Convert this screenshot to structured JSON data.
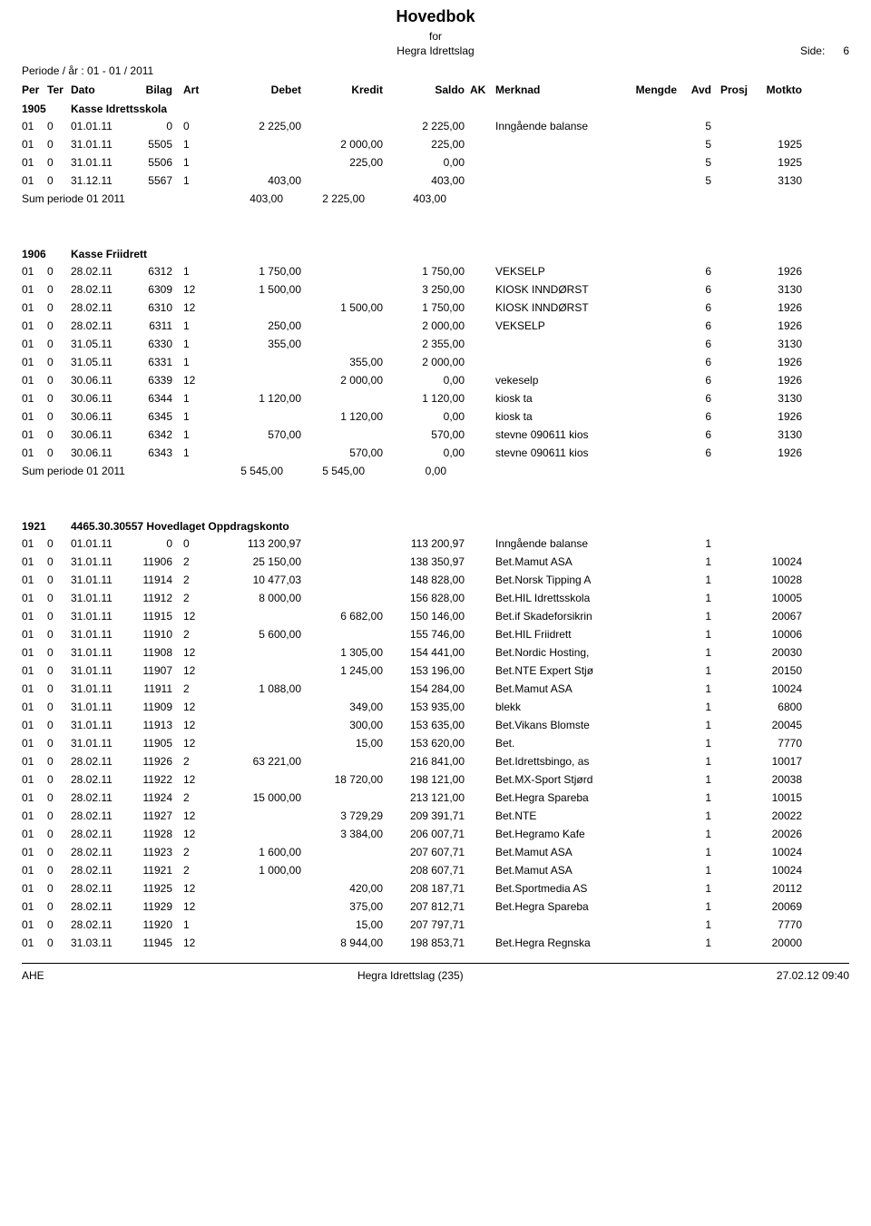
{
  "header": {
    "title": "Hovedbok",
    "sub": "for",
    "entity": "Hegra Idrettslag",
    "side_label": "Side:",
    "side_num": "6"
  },
  "period_line": "Periode / år :  01   -   01  /  2011",
  "columns": {
    "per": "Per",
    "ter": "Ter",
    "dato": "Dato",
    "bilag": "Bilag",
    "art": "Art",
    "debet": "Debet",
    "kredit": "Kredit",
    "saldo": "Saldo",
    "ak": "AK",
    "merknad": "Merknad",
    "mengde": "Mengde",
    "avd": "Avd",
    "prosj": "Prosj",
    "motkto": "Motkto"
  },
  "sections": [
    {
      "acct": "1905",
      "name": "Kasse Idrettsskola",
      "rows": [
        {
          "per": "01",
          "ter": "0",
          "dato": "01.01.11",
          "bilag": "0",
          "art": "0",
          "debet": "2 225,00",
          "kredit": "",
          "saldo": "2 225,00",
          "merknad": "Inngående balanse",
          "avd": "5",
          "motkto": ""
        },
        {
          "per": "01",
          "ter": "0",
          "dato": "31.01.11",
          "bilag": "5505",
          "art": "1",
          "debet": "",
          "kredit": "2 000,00",
          "saldo": "225,00",
          "merknad": "",
          "avd": "5",
          "motkto": "1925"
        },
        {
          "per": "01",
          "ter": "0",
          "dato": "31.01.11",
          "bilag": "5506",
          "art": "1",
          "debet": "",
          "kredit": "225,00",
          "saldo": "0,00",
          "merknad": "",
          "avd": "5",
          "motkto": "1925"
        },
        {
          "per": "01",
          "ter": "0",
          "dato": "31.12.11",
          "bilag": "5567",
          "art": "1",
          "debet": "403,00",
          "kredit": "",
          "saldo": "403,00",
          "merknad": "",
          "avd": "5",
          "motkto": "3130"
        }
      ],
      "sum": {
        "label": "Sum periode 01  2011",
        "debet": "403,00",
        "kredit": "2 225,00",
        "saldo": "403,00"
      }
    },
    {
      "acct": "1906",
      "name": "Kasse Friidrett",
      "rows": [
        {
          "per": "01",
          "ter": "0",
          "dato": "28.02.11",
          "bilag": "6312",
          "art": "1",
          "debet": "1 750,00",
          "kredit": "",
          "saldo": "1 750,00",
          "merknad": "VEKSELP",
          "avd": "6",
          "motkto": "1926"
        },
        {
          "per": "01",
          "ter": "0",
          "dato": "28.02.11",
          "bilag": "6309",
          "art": "12",
          "debet": "1 500,00",
          "kredit": "",
          "saldo": "3 250,00",
          "merknad": "KIOSK INNDØRST",
          "avd": "6",
          "motkto": "3130"
        },
        {
          "per": "01",
          "ter": "0",
          "dato": "28.02.11",
          "bilag": "6310",
          "art": "12",
          "debet": "",
          "kredit": "1 500,00",
          "saldo": "1 750,00",
          "merknad": "KIOSK INNDØRST",
          "avd": "6",
          "motkto": "1926"
        },
        {
          "per": "01",
          "ter": "0",
          "dato": "28.02.11",
          "bilag": "6311",
          "art": "1",
          "debet": "250,00",
          "kredit": "",
          "saldo": "2 000,00",
          "merknad": "VEKSELP",
          "avd": "6",
          "motkto": "1926"
        },
        {
          "per": "01",
          "ter": "0",
          "dato": "31.05.11",
          "bilag": "6330",
          "art": "1",
          "debet": "355,00",
          "kredit": "",
          "saldo": "2 355,00",
          "merknad": "",
          "avd": "6",
          "motkto": "3130"
        },
        {
          "per": "01",
          "ter": "0",
          "dato": "31.05.11",
          "bilag": "6331",
          "art": "1",
          "debet": "",
          "kredit": "355,00",
          "saldo": "2 000,00",
          "merknad": "",
          "avd": "6",
          "motkto": "1926"
        },
        {
          "per": "01",
          "ter": "0",
          "dato": "30.06.11",
          "bilag": "6339",
          "art": "12",
          "debet": "",
          "kredit": "2 000,00",
          "saldo": "0,00",
          "merknad": "vekeselp",
          "avd": "6",
          "motkto": "1926"
        },
        {
          "per": "01",
          "ter": "0",
          "dato": "30.06.11",
          "bilag": "6344",
          "art": "1",
          "debet": "1 120,00",
          "kredit": "",
          "saldo": "1 120,00",
          "merknad": "kiosk ta",
          "avd": "6",
          "motkto": "3130"
        },
        {
          "per": "01",
          "ter": "0",
          "dato": "30.06.11",
          "bilag": "6345",
          "art": "1",
          "debet": "",
          "kredit": "1 120,00",
          "saldo": "0,00",
          "merknad": "kiosk ta",
          "avd": "6",
          "motkto": "1926"
        },
        {
          "per": "01",
          "ter": "0",
          "dato": "30.06.11",
          "bilag": "6342",
          "art": "1",
          "debet": "570,00",
          "kredit": "",
          "saldo": "570,00",
          "merknad": "stevne 090611 kios",
          "avd": "6",
          "motkto": "3130"
        },
        {
          "per": "01",
          "ter": "0",
          "dato": "30.06.11",
          "bilag": "6343",
          "art": "1",
          "debet": "",
          "kredit": "570,00",
          "saldo": "0,00",
          "merknad": "stevne 090611 kios",
          "avd": "6",
          "motkto": "1926"
        }
      ],
      "sum": {
        "label": "Sum periode 01  2011",
        "debet": "5 545,00",
        "kredit": "5 545,00",
        "saldo": "0,00"
      }
    },
    {
      "acct": "1921",
      "name": "4465.30.30557 Hovedlaget Oppdragskonto",
      "rows": [
        {
          "per": "01",
          "ter": "0",
          "dato": "01.01.11",
          "bilag": "0",
          "art": "0",
          "debet": "113 200,97",
          "kredit": "",
          "saldo": "113 200,97",
          "merknad": "Inngående balanse",
          "avd": "1",
          "motkto": ""
        },
        {
          "per": "01",
          "ter": "0",
          "dato": "31.01.11",
          "bilag": "11906",
          "art": "2",
          "debet": "25 150,00",
          "kredit": "",
          "saldo": "138 350,97",
          "merknad": "Bet.Mamut ASA",
          "avd": "1",
          "motkto": "10024"
        },
        {
          "per": "01",
          "ter": "0",
          "dato": "31.01.11",
          "bilag": "11914",
          "art": "2",
          "debet": "10 477,03",
          "kredit": "",
          "saldo": "148 828,00",
          "merknad": "Bet.Norsk Tipping A",
          "avd": "1",
          "motkto": "10028"
        },
        {
          "per": "01",
          "ter": "0",
          "dato": "31.01.11",
          "bilag": "11912",
          "art": "2",
          "debet": "8 000,00",
          "kredit": "",
          "saldo": "156 828,00",
          "merknad": "Bet.HIL Idrettsskola",
          "avd": "1",
          "motkto": "10005"
        },
        {
          "per": "01",
          "ter": "0",
          "dato": "31.01.11",
          "bilag": "11915",
          "art": "12",
          "debet": "",
          "kredit": "6 682,00",
          "saldo": "150 146,00",
          "merknad": "Bet.if Skadeforsikrin",
          "avd": "1",
          "motkto": "20067"
        },
        {
          "per": "01",
          "ter": "0",
          "dato": "31.01.11",
          "bilag": "11910",
          "art": "2",
          "debet": "5 600,00",
          "kredit": "",
          "saldo": "155 746,00",
          "merknad": "Bet.HIL Friidrett",
          "avd": "1",
          "motkto": "10006"
        },
        {
          "per": "01",
          "ter": "0",
          "dato": "31.01.11",
          "bilag": "11908",
          "art": "12",
          "debet": "",
          "kredit": "1 305,00",
          "saldo": "154 441,00",
          "merknad": "Bet.Nordic Hosting,",
          "avd": "1",
          "motkto": "20030"
        },
        {
          "per": "01",
          "ter": "0",
          "dato": "31.01.11",
          "bilag": "11907",
          "art": "12",
          "debet": "",
          "kredit": "1 245,00",
          "saldo": "153 196,00",
          "merknad": "Bet.NTE Expert Stjø",
          "avd": "1",
          "motkto": "20150"
        },
        {
          "per": "01",
          "ter": "0",
          "dato": "31.01.11",
          "bilag": "11911",
          "art": "2",
          "debet": "1 088,00",
          "kredit": "",
          "saldo": "154 284,00",
          "merknad": "Bet.Mamut ASA",
          "avd": "1",
          "motkto": "10024"
        },
        {
          "per": "01",
          "ter": "0",
          "dato": "31.01.11",
          "bilag": "11909",
          "art": "12",
          "debet": "",
          "kredit": "349,00",
          "saldo": "153 935,00",
          "merknad": "blekk",
          "avd": "1",
          "motkto": "6800"
        },
        {
          "per": "01",
          "ter": "0",
          "dato": "31.01.11",
          "bilag": "11913",
          "art": "12",
          "debet": "",
          "kredit": "300,00",
          "saldo": "153 635,00",
          "merknad": "Bet.Vikans Blomste",
          "avd": "1",
          "motkto": "20045"
        },
        {
          "per": "01",
          "ter": "0",
          "dato": "31.01.11",
          "bilag": "11905",
          "art": "12",
          "debet": "",
          "kredit": "15,00",
          "saldo": "153 620,00",
          "merknad": "Bet.",
          "avd": "1",
          "motkto": "7770"
        },
        {
          "per": "01",
          "ter": "0",
          "dato": "28.02.11",
          "bilag": "11926",
          "art": "2",
          "debet": "63 221,00",
          "kredit": "",
          "saldo": "216 841,00",
          "merknad": "Bet.Idrettsbingo, as",
          "avd": "1",
          "motkto": "10017"
        },
        {
          "per": "01",
          "ter": "0",
          "dato": "28.02.11",
          "bilag": "11922",
          "art": "12",
          "debet": "",
          "kredit": "18 720,00",
          "saldo": "198 121,00",
          "merknad": "Bet.MX-Sport Stjørd",
          "avd": "1",
          "motkto": "20038"
        },
        {
          "per": "01",
          "ter": "0",
          "dato": "28.02.11",
          "bilag": "11924",
          "art": "2",
          "debet": "15 000,00",
          "kredit": "",
          "saldo": "213 121,00",
          "merknad": "Bet.Hegra Spareba",
          "avd": "1",
          "motkto": "10015"
        },
        {
          "per": "01",
          "ter": "0",
          "dato": "28.02.11",
          "bilag": "11927",
          "art": "12",
          "debet": "",
          "kredit": "3 729,29",
          "saldo": "209 391,71",
          "merknad": "Bet.NTE",
          "avd": "1",
          "motkto": "20022"
        },
        {
          "per": "01",
          "ter": "0",
          "dato": "28.02.11",
          "bilag": "11928",
          "art": "12",
          "debet": "",
          "kredit": "3 384,00",
          "saldo": "206 007,71",
          "merknad": "Bet.Hegramo Kafe",
          "avd": "1",
          "motkto": "20026"
        },
        {
          "per": "01",
          "ter": "0",
          "dato": "28.02.11",
          "bilag": "11923",
          "art": "2",
          "debet": "1 600,00",
          "kredit": "",
          "saldo": "207 607,71",
          "merknad": "Bet.Mamut ASA",
          "avd": "1",
          "motkto": "10024"
        },
        {
          "per": "01",
          "ter": "0",
          "dato": "28.02.11",
          "bilag": "11921",
          "art": "2",
          "debet": "1 000,00",
          "kredit": "",
          "saldo": "208 607,71",
          "merknad": "Bet.Mamut ASA",
          "avd": "1",
          "motkto": "10024"
        },
        {
          "per": "01",
          "ter": "0",
          "dato": "28.02.11",
          "bilag": "11925",
          "art": "12",
          "debet": "",
          "kredit": "420,00",
          "saldo": "208 187,71",
          "merknad": "Bet.Sportmedia AS",
          "avd": "1",
          "motkto": "20112"
        },
        {
          "per": "01",
          "ter": "0",
          "dato": "28.02.11",
          "bilag": "11929",
          "art": "12",
          "debet": "",
          "kredit": "375,00",
          "saldo": "207 812,71",
          "merknad": "Bet.Hegra Spareba",
          "avd": "1",
          "motkto": "20069"
        },
        {
          "per": "01",
          "ter": "0",
          "dato": "28.02.11",
          "bilag": "11920",
          "art": "1",
          "debet": "",
          "kredit": "15,00",
          "saldo": "207 797,71",
          "merknad": "",
          "avd": "1",
          "motkto": "7770"
        },
        {
          "per": "01",
          "ter": "0",
          "dato": "31.03.11",
          "bilag": "11945",
          "art": "12",
          "debet": "",
          "kredit": "8 944,00",
          "saldo": "198 853,71",
          "merknad": "Bet.Hegra Regnska",
          "avd": "1",
          "motkto": "20000"
        }
      ]
    }
  ],
  "footer": {
    "left": "AHE",
    "center": "Hegra Idrettslag (235)",
    "right": "27.02.12  09:40"
  }
}
